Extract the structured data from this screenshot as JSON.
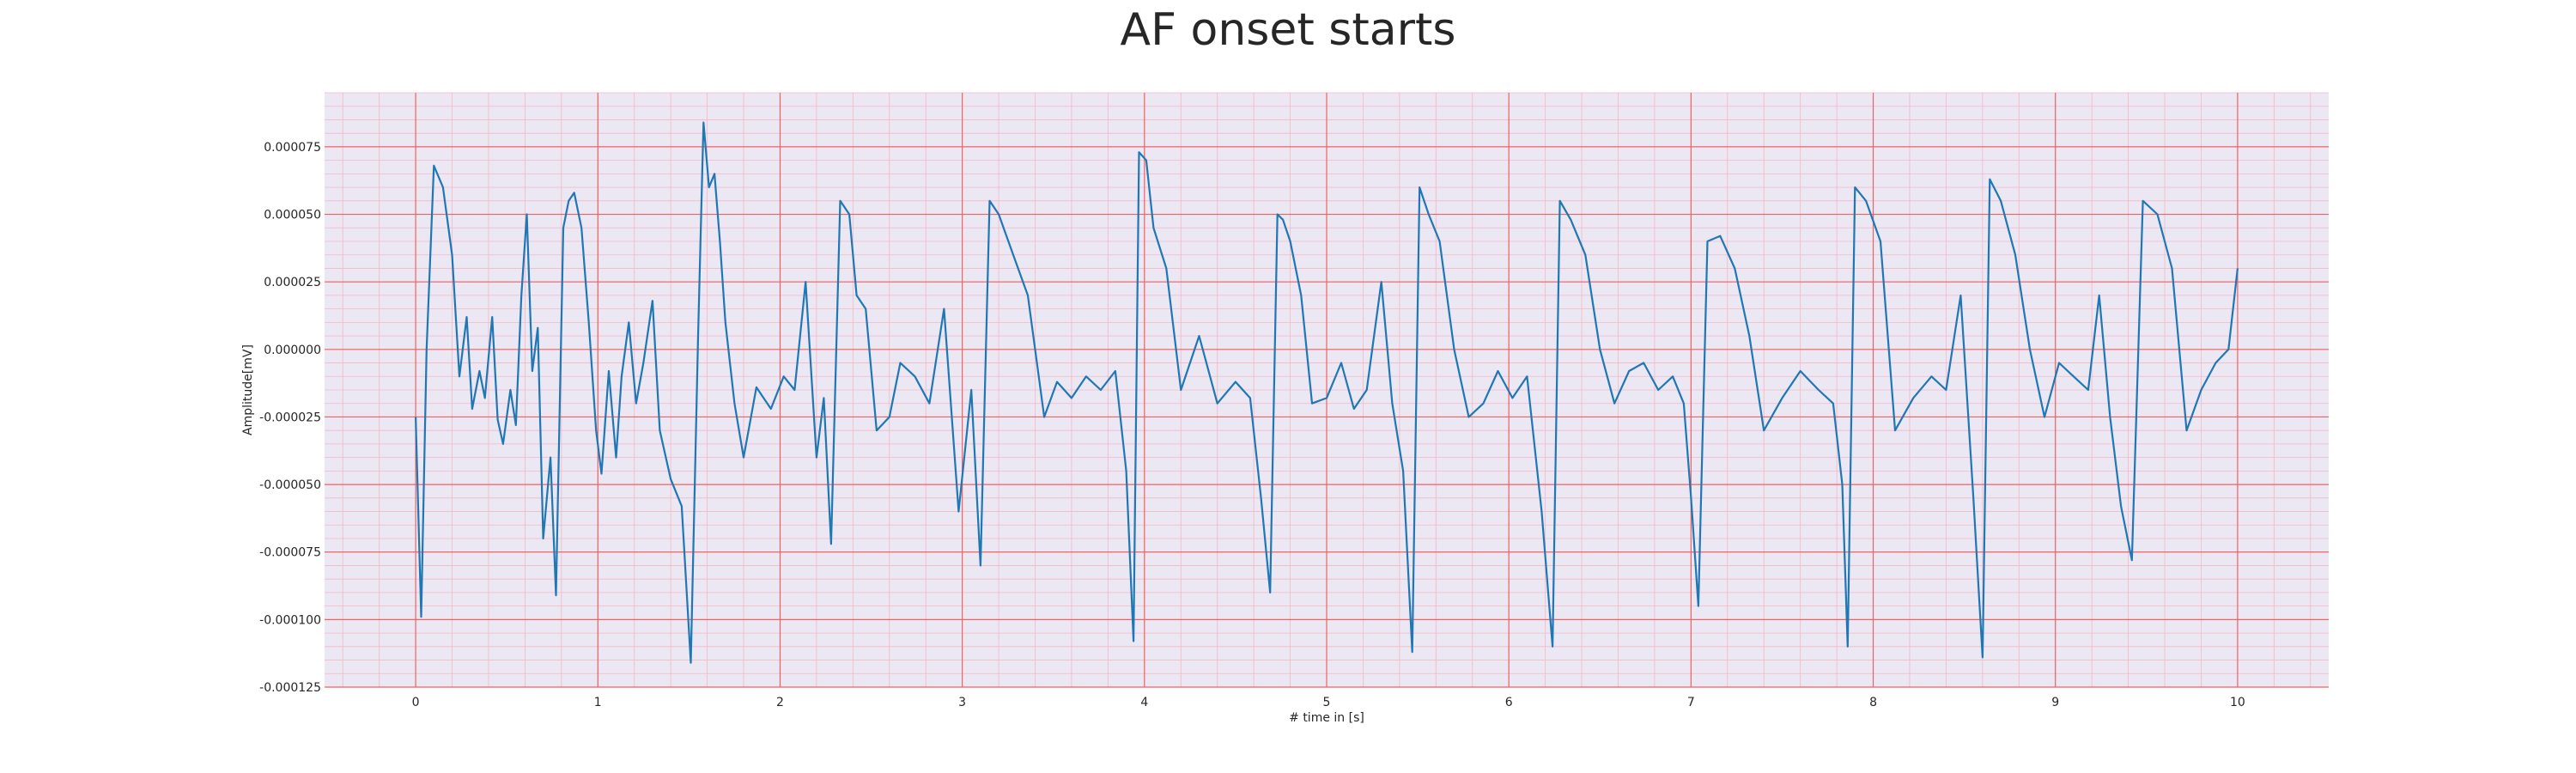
{
  "chart_data": {
    "type": "line",
    "title": "AF onset starts",
    "xlabel": "# time in [s]",
    "ylabel": "Amplitude[mV]",
    "xlim": [
      -0.5,
      10.5
    ],
    "ylim": [
      -0.000125,
      9.5e-05
    ],
    "x_ticks": [
      0,
      1,
      2,
      3,
      4,
      5,
      6,
      7,
      8,
      9,
      10
    ],
    "x_tick_labels": [
      "0",
      "1",
      "2",
      "3",
      "4",
      "5",
      "6",
      "7",
      "8",
      "9",
      "10"
    ],
    "y_ticks": [
      -0.000125,
      -0.0001,
      -7.5e-05,
      -5e-05,
      -2.5e-05,
      0,
      2.5e-05,
      5e-05,
      7.5e-05
    ],
    "y_tick_labels": [
      "-0.000125",
      "-0.000100",
      "-0.000075",
      "-0.000050",
      "-0.000025",
      "0.000000",
      "0.000025",
      "0.000050",
      "0.000075"
    ],
    "grid": true,
    "background_color": "#ebe7f3",
    "major_grid_color": "#f06262",
    "minor_grid_color": "#f4b8c4",
    "series": [
      {
        "color": "#1f77b4",
        "x": [
          0.0,
          0.03,
          0.06,
          0.1,
          0.15,
          0.2,
          0.24,
          0.28,
          0.31,
          0.35,
          0.38,
          0.42,
          0.45,
          0.48,
          0.52,
          0.55,
          0.58,
          0.61,
          0.64,
          0.67,
          0.7,
          0.74,
          0.77,
          0.81,
          0.84,
          0.87,
          0.91,
          0.95,
          0.99,
          1.02,
          1.06,
          1.1,
          1.13,
          1.17,
          1.21,
          1.25,
          1.3,
          1.34,
          1.4,
          1.46,
          1.51,
          1.55,
          1.58,
          1.61,
          1.64,
          1.67,
          1.7,
          1.75,
          1.8,
          1.87,
          1.95,
          2.02,
          2.08,
          2.14,
          2.2,
          2.24,
          2.28,
          2.33,
          2.38,
          2.42,
          2.47,
          2.53,
          2.6,
          2.66,
          2.74,
          2.82,
          2.9,
          2.98,
          3.05,
          3.1,
          3.15,
          3.2,
          3.28,
          3.36,
          3.45,
          3.52,
          3.6,
          3.68,
          3.76,
          3.84,
          3.9,
          3.94,
          3.97,
          4.01,
          4.05,
          4.12,
          4.2,
          4.3,
          4.4,
          4.5,
          4.58,
          4.64,
          4.69,
          4.73,
          4.76,
          4.8,
          4.86,
          4.92,
          5.0,
          5.08,
          5.15,
          5.22,
          5.3,
          5.36,
          5.42,
          5.47,
          5.51,
          5.56,
          5.62,
          5.7,
          5.78,
          5.86,
          5.94,
          6.02,
          6.1,
          6.18,
          6.24,
          6.28,
          6.34,
          6.42,
          6.5,
          6.58,
          6.66,
          6.74,
          6.82,
          6.9,
          6.96,
          7.0,
          7.04,
          7.09,
          7.16,
          7.24,
          7.32,
          7.4,
          7.5,
          7.6,
          7.7,
          7.78,
          7.83,
          7.86,
          7.9,
          7.96,
          8.04,
          8.12,
          8.22,
          8.32,
          8.4,
          8.48,
          8.55,
          8.6,
          8.64,
          8.7,
          8.78,
          8.86,
          8.94,
          9.02,
          9.1,
          9.18,
          9.24,
          9.3,
          9.36,
          9.42,
          9.48,
          9.56,
          9.64,
          9.72,
          9.8,
          9.88,
          9.95,
          10.0
        ],
        "y": [
          -2.5e-05,
          -9.9e-05,
          0.0,
          6.8e-05,
          6e-05,
          3.5e-05,
          -1e-05,
          1.2e-05,
          -2.2e-05,
          -8e-06,
          -1.8e-05,
          1.2e-05,
          -2.6e-05,
          -3.5e-05,
          -1.5e-05,
          -2.8e-05,
          2e-05,
          5e-05,
          -8e-06,
          8e-06,
          -7e-05,
          -4e-05,
          -9.1e-05,
          4.5e-05,
          5.5e-05,
          5.8e-05,
          4.5e-05,
          1e-05,
          -3e-05,
          -4.6e-05,
          -8e-06,
          -4e-05,
          -1e-05,
          1e-05,
          -2e-05,
          -5e-06,
          1.8e-05,
          -3e-05,
          -4.8e-05,
          -5.8e-05,
          -0.000116,
          5e-06,
          8.4e-05,
          6e-05,
          6.5e-05,
          4e-05,
          1e-05,
          -2e-05,
          -4e-05,
          -1.4e-05,
          -2.2e-05,
          -1e-05,
          -1.5e-05,
          2.5e-05,
          -4e-05,
          -1.8e-05,
          -7.2e-05,
          5.5e-05,
          5e-05,
          2e-05,
          1.5e-05,
          -3e-05,
          -2.5e-05,
          -5e-06,
          -1e-05,
          -2e-05,
          1.5e-05,
          -6e-05,
          -1.5e-05,
          -8e-05,
          5.5e-05,
          5e-05,
          3.5e-05,
          2e-05,
          -2.5e-05,
          -1.2e-05,
          -1.8e-05,
          -1e-05,
          -1.5e-05,
          -8e-06,
          -4.5e-05,
          -0.000108,
          7.3e-05,
          7e-05,
          4.5e-05,
          3e-05,
          -1.5e-05,
          5e-06,
          -2e-05,
          -1.2e-05,
          -1.8e-05,
          -5.5e-05,
          -9e-05,
          5e-05,
          4.8e-05,
          4e-05,
          2e-05,
          -2e-05,
          -1.8e-05,
          -5e-06,
          -2.2e-05,
          -1.5e-05,
          2.5e-05,
          -2e-05,
          -4.5e-05,
          -0.000112,
          6e-05,
          5e-05,
          4e-05,
          0.0,
          -2.5e-05,
          -2e-05,
          -8e-06,
          -1.8e-05,
          -1e-05,
          -6e-05,
          -0.00011,
          5.5e-05,
          4.8e-05,
          3.5e-05,
          0.0,
          -2e-05,
          -8e-06,
          -5e-06,
          -1.5e-05,
          -1e-05,
          -2e-05,
          -5.5e-05,
          -9.5e-05,
          4e-05,
          4.2e-05,
          3e-05,
          5e-06,
          -3e-05,
          -1.8e-05,
          -8e-06,
          -1.5e-05,
          -2e-05,
          -5e-05,
          -0.00011,
          6e-05,
          5.5e-05,
          4e-05,
          -3e-05,
          -1.8e-05,
          -1e-05,
          -1.5e-05,
          2e-05,
          -5.5e-05,
          -0.000114,
          6.3e-05,
          5.5e-05,
          3.5e-05,
          0.0,
          -2.5e-05,
          -5e-06,
          -1e-05,
          -1.5e-05,
          2e-05,
          -2.5e-05,
          -5.8e-05,
          -7.8e-05,
          5.5e-05,
          5e-05,
          3e-05,
          -3e-05,
          -1.5e-05,
          -5e-06,
          0.0,
          3e-05
        ]
      }
    ]
  }
}
